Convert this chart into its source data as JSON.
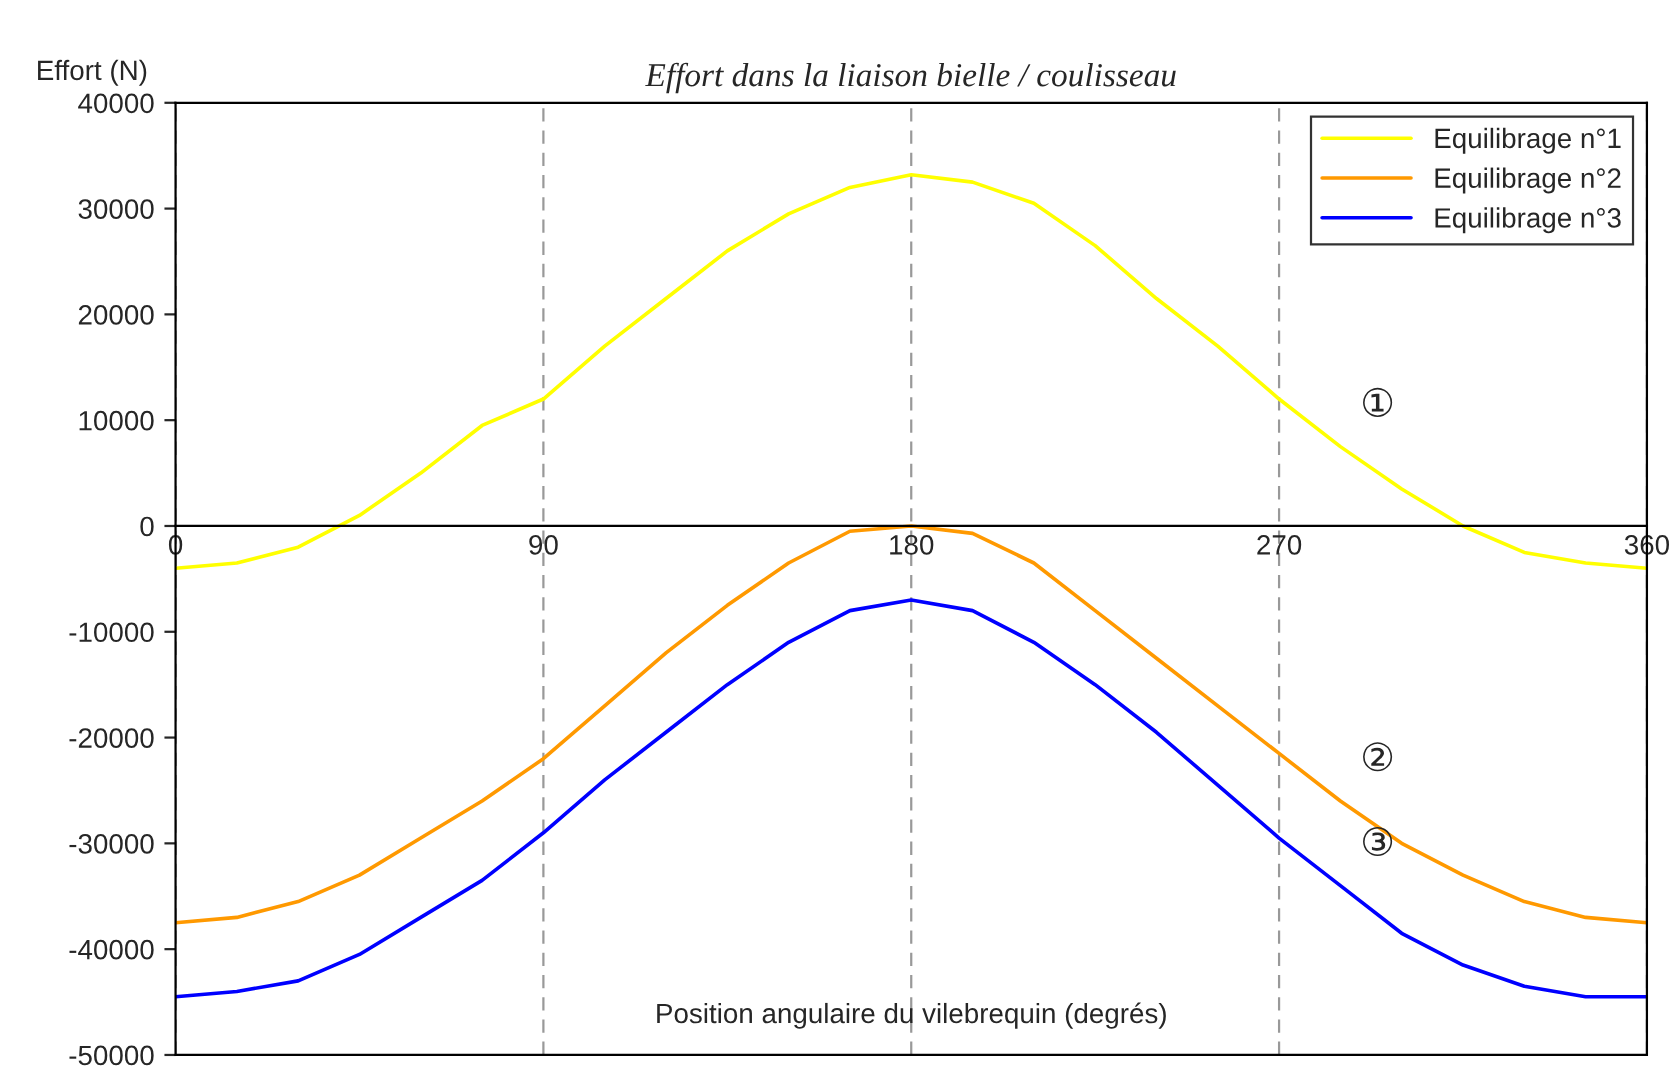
{
  "chart_data": {
    "type": "line",
    "title": "Effort dans la liaison bielle / coulisseau",
    "xlabel": "Position angulaire du vilebrequin (degrés)",
    "ylabel": "Effort (N)",
    "x": [
      0,
      15,
      30,
      45,
      60,
      75,
      90,
      105,
      120,
      135,
      150,
      165,
      180,
      195,
      210,
      225,
      240,
      255,
      270,
      285,
      300,
      315,
      330,
      345,
      360
    ],
    "series": [
      {
        "name": "Equilibrage n°1",
        "color": "#ffff00",
        "values": [
          -4000,
          -3500,
          -2000,
          1000,
          5000,
          9500,
          12000,
          17000,
          21500,
          26000,
          29500,
          32000,
          33200,
          32500,
          30500,
          26500,
          21500,
          17000,
          12000,
          7500,
          3500,
          0,
          -2500,
          -3500,
          -4000
        ]
      },
      {
        "name": "Equilibrage n°2",
        "color": "#ff9900",
        "values": [
          -37500,
          -37000,
          -35500,
          -33000,
          -29500,
          -26000,
          -22000,
          -17000,
          -12000,
          -7500,
          -3500,
          -500,
          0,
          -700,
          -3500,
          -8000,
          -12500,
          -17000,
          -21500,
          -26000,
          -30000,
          -33000,
          -35500,
          -37000,
          -37500
        ]
      },
      {
        "name": "Equilibrage n°3",
        "color": "#0000ff",
        "values": [
          -44500,
          -44000,
          -43000,
          -40500,
          -37000,
          -33500,
          -29000,
          -24000,
          -19500,
          -15000,
          -11000,
          -8000,
          -7000,
          -8000,
          -11000,
          -15000,
          -19500,
          -24500,
          -29500,
          -34000,
          -38500,
          -41500,
          -43500,
          -44500,
          -44500
        ]
      }
    ],
    "xlim": [
      0,
      360
    ],
    "xticks": [
      0,
      90,
      180,
      270,
      360
    ],
    "ylim": [
      -50000,
      40000
    ],
    "yticks": [
      -50000,
      -40000,
      -30000,
      -20000,
      -10000,
      0,
      10000,
      20000,
      30000,
      40000
    ],
    "grid": "x",
    "legend": "top right",
    "marker": "none",
    "line_style": "solid",
    "annotations": [
      "①",
      "②",
      "③"
    ]
  }
}
